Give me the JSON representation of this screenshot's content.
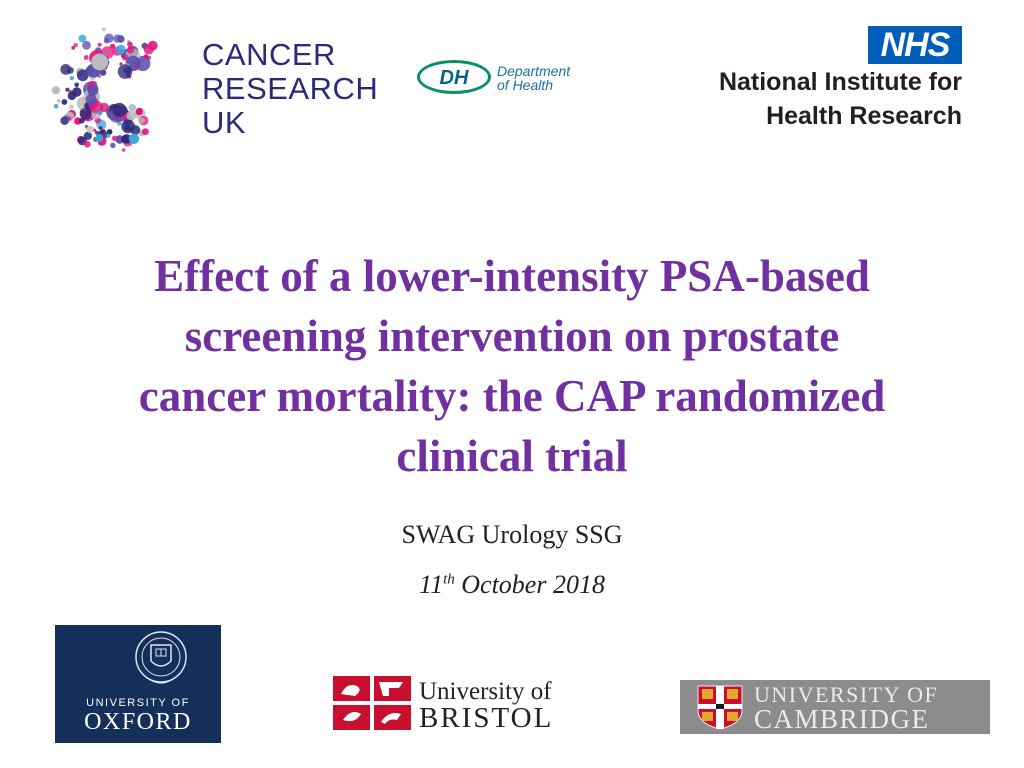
{
  "logos": {
    "cruk": {
      "line1": "CANCER",
      "line2": "RESEARCH",
      "line3": "UK"
    },
    "dh": {
      "mark": "DH",
      "line1": "Department",
      "line2": "of Health"
    },
    "nhs": {
      "badge": "NHS",
      "line1": "National Institute for",
      "line2": "Health Research"
    },
    "oxford": {
      "line1": "UNIVERSITY OF",
      "line2": "OXFORD"
    },
    "bristol": {
      "line1": "University of",
      "line2": "BRISTOL"
    },
    "cambridge": {
      "line1": "UNIVERSITY OF",
      "line2": "CAMBRIDGE"
    }
  },
  "title": {
    "lines": [
      "Effect of a lower-intensity PSA-based",
      "screening intervention on prostate",
      "cancer mortality: the CAP randomized",
      "clinical trial"
    ]
  },
  "subtitle": "SWAG Urology SSG",
  "date": {
    "day": "11",
    "suffix": "th",
    "rest": " October 2018"
  },
  "colors": {
    "title": "#7030a0",
    "cruk_navy": "#2d2a7a",
    "cruk_pink": "#e0197d",
    "nhs_blue": "#005eb8",
    "dh_green": "#0b8f6a",
    "oxford_blue": "#14305a",
    "bristol_red": "#c8102e",
    "cambridge_grey": "#8c8c8c"
  }
}
